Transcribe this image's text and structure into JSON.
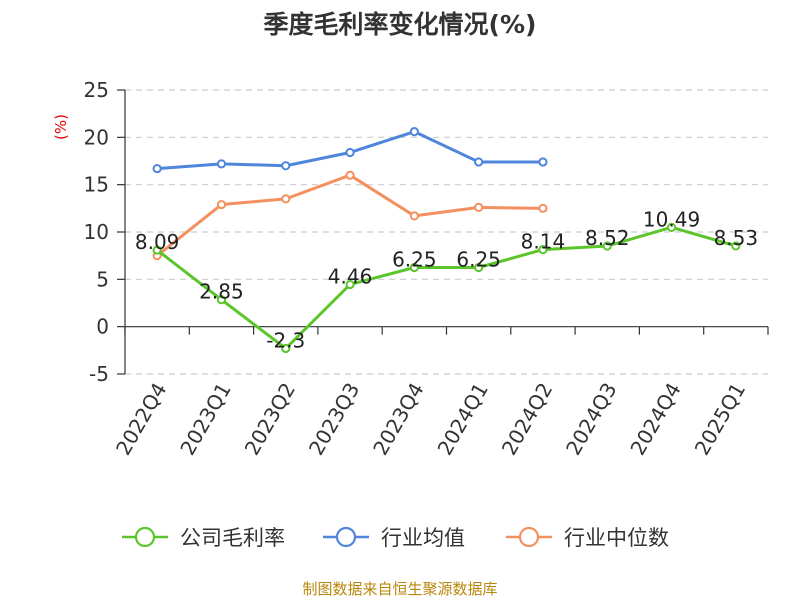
{
  "title": "季度毛利率变化情况(%)",
  "source_note": "制图数据来自恒生聚源数据库",
  "chart_data": {
    "type": "line",
    "title": "季度毛利率变化情况(%)",
    "ylabel": "(%)",
    "xlabel": "",
    "ylim": [
      -5,
      25
    ],
    "yticks": [
      -5,
      0,
      5,
      10,
      15,
      20,
      25
    ],
    "grid": true,
    "legend_position": "bottom",
    "categories": [
      "2022Q4",
      "2023Q1",
      "2023Q2",
      "2023Q3",
      "2023Q4",
      "2024Q1",
      "2024Q2",
      "2024Q3",
      "2024Q4",
      "2025Q1"
    ],
    "series": [
      {
        "name": "公司毛利率",
        "color": "#5cc52c",
        "values": [
          8.09,
          2.85,
          -2.3,
          4.46,
          6.25,
          6.25,
          8.14,
          8.52,
          10.49,
          8.53
        ],
        "data_labels": [
          "8.09",
          "2.85",
          "-2.3",
          "4.46",
          "6.25",
          "6.25",
          "8.14",
          "8.52",
          "10.49",
          "8.53"
        ]
      },
      {
        "name": "行业均值",
        "color": "#4f86dc",
        "values": [
          16.7,
          17.2,
          17.0,
          18.4,
          20.6,
          17.4,
          17.4,
          null,
          null,
          null
        ]
      },
      {
        "name": "行业中位数",
        "color": "#f49060",
        "values": [
          7.5,
          12.9,
          13.5,
          16.0,
          11.7,
          12.6,
          12.5,
          null,
          null,
          null
        ]
      }
    ]
  }
}
